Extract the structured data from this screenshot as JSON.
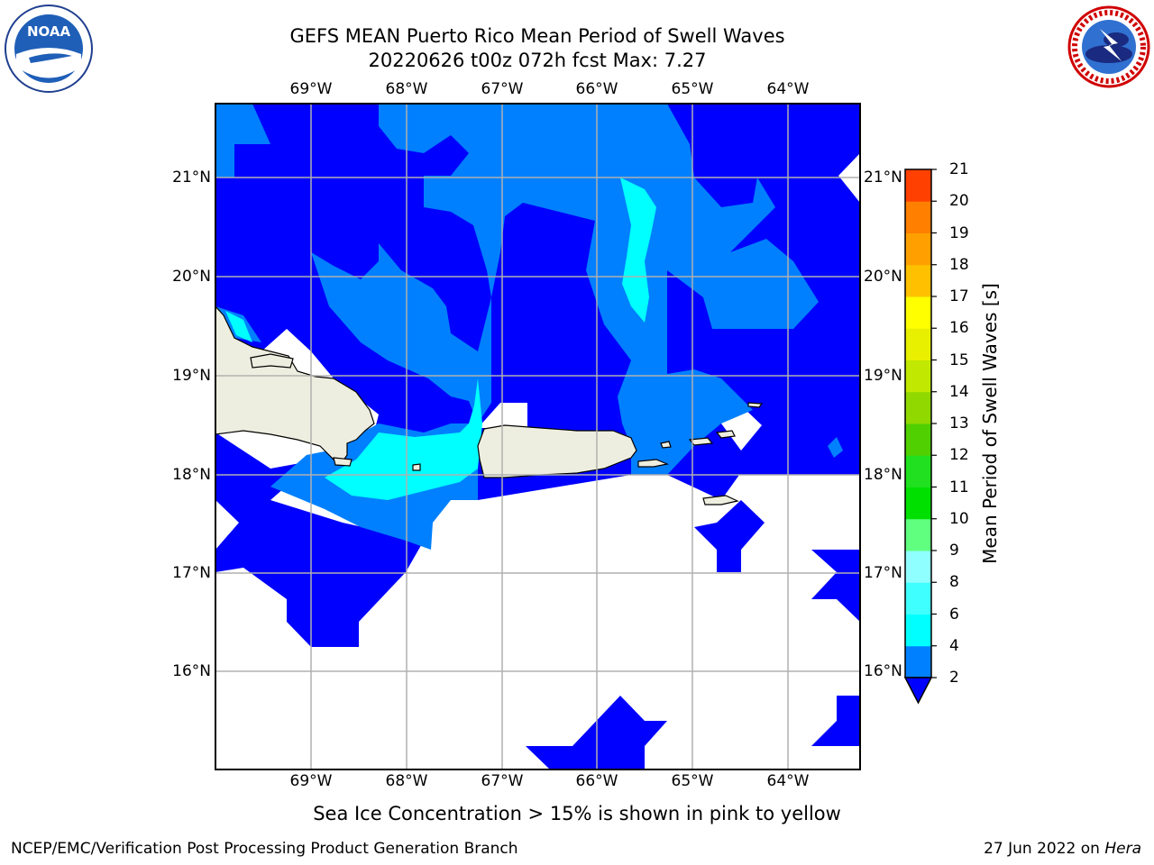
{
  "title_line1": "GEFS MEAN Puerto Rico Mean Period of Swell Waves",
  "title_line2": "20220626 t00z 072h fcst   Max: 7.27",
  "logos": {
    "left": "noaa-logo",
    "right": "national-weather-service-logo"
  },
  "map": {
    "longitude_labels": [
      "69°W",
      "68°W",
      "67°W",
      "66°W",
      "65°W",
      "64°W"
    ],
    "latitude_labels": [
      "21°N",
      "20°N",
      "19°N",
      "18°N",
      "17°N",
      "16°N"
    ],
    "colors": {
      "band_2_4": "#0080ff",
      "band_below_2": "#0000ff",
      "band_4_6": "#00ffff",
      "land": "#eeeee0",
      "grid": "#b0b0b0"
    }
  },
  "colorbar": {
    "label": "Mean Period of Swell Waves [s]",
    "tick_labels": [
      "2",
      "4",
      "6",
      "8",
      "9",
      "10",
      "11",
      "12",
      "13",
      "14",
      "15",
      "16",
      "17",
      "18",
      "19",
      "20",
      "21"
    ],
    "colors": [
      "#0080ff",
      "#00ffff",
      "#40ffff",
      "#90ffff",
      "#60ff80",
      "#00e000",
      "#20e020",
      "#50d000",
      "#90d800",
      "#c0e800",
      "#e8f000",
      "#ffff00",
      "#ffc000",
      "#ffa000",
      "#ff8000",
      "#ff4000",
      "#ff2000",
      "#ff0000"
    ],
    "extend_color": "#0000ff"
  },
  "note": "Sea Ice Concentration > 15% is shown in pink to yellow",
  "footer": {
    "left": "NCEP/EMC/Verification Post Processing Product Generation Branch",
    "right_date": "27 Jun 2022 on",
    "right_machine": "Hera"
  }
}
